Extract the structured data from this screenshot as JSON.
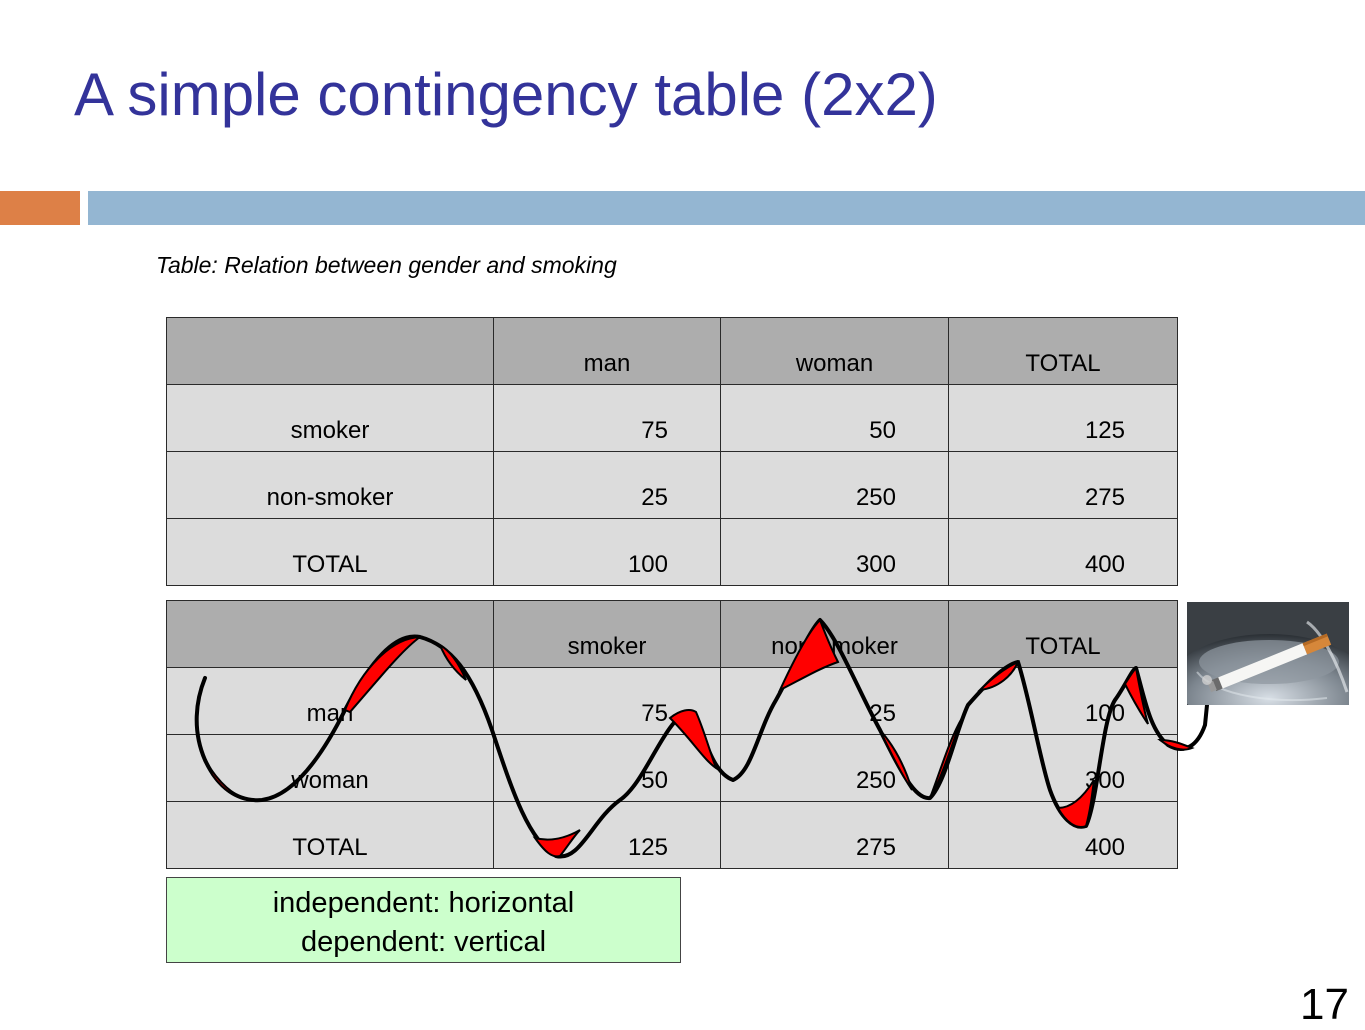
{
  "slide": {
    "title": "A simple contingency table (2x2)",
    "page_number": "17",
    "accent_colors": {
      "title": "#33339a",
      "orange_bar": "#dd8047",
      "blue_bar": "#94b6d2",
      "scribble": "#ff0000"
    }
  },
  "caption": "Table: Relation between gender and smoking",
  "table1": {
    "headers": [
      "",
      "man",
      "woman",
      "TOTAL"
    ],
    "rows": [
      [
        "smoker",
        "75",
        "50",
        "125"
      ],
      [
        "non-smoker",
        "25",
        "250",
        "275"
      ],
      [
        "TOTAL",
        "100",
        "300",
        "400"
      ]
    ]
  },
  "table2": {
    "headers": [
      "",
      "smoker",
      "non-smoker",
      "TOTAL"
    ],
    "rows": [
      [
        "man",
        "75",
        "25",
        "100"
      ],
      [
        "woman",
        "50",
        "250",
        "300"
      ],
      [
        "TOTAL",
        "125",
        "275",
        "400"
      ]
    ]
  },
  "note": {
    "line1": "independent: horizontal",
    "line2": "dependent: vertical"
  },
  "icons": {
    "photo": "cigarette-in-ashtray-photo",
    "strike": "red-scribble-strikethrough"
  }
}
